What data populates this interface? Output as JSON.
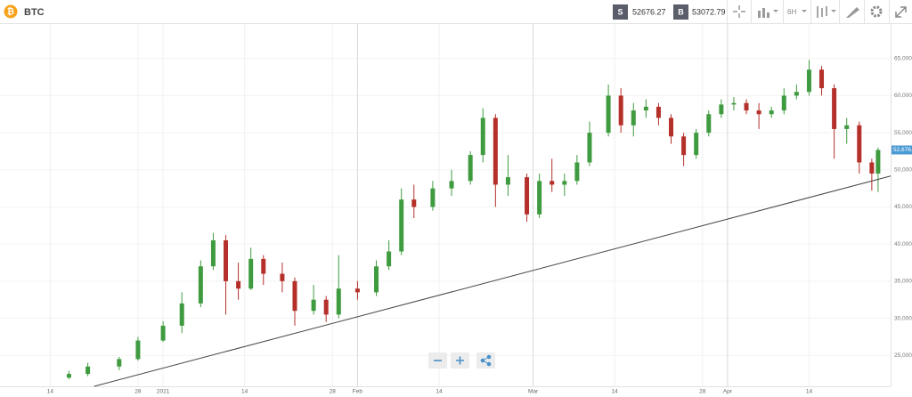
{
  "header": {
    "symbol": "BTC",
    "sell": {
      "label": "S",
      "price": "52676.27"
    },
    "buy": {
      "label": "B",
      "price": "53072.79"
    },
    "interval": "6H"
  },
  "chart_data": {
    "type": "candlestick",
    "x": [
      "2020-12-17",
      "2020-12-20",
      "2020-12-25",
      "2020-12-28",
      "2021-01-01",
      "2021-01-04",
      "2021-01-07",
      "2021-01-09",
      "2021-01-11",
      "2021-01-13",
      "2021-01-15",
      "2021-01-17",
      "2021-01-20",
      "2021-01-22",
      "2021-01-25",
      "2021-01-27",
      "2021-01-29",
      "2021-02-01",
      "2021-02-04",
      "2021-02-06",
      "2021-02-08",
      "2021-02-10",
      "2021-02-13",
      "2021-02-16",
      "2021-02-19",
      "2021-02-21",
      "2021-02-23",
      "2021-02-25",
      "2021-02-28",
      "2021-03-02",
      "2021-03-04",
      "2021-03-06",
      "2021-03-08",
      "2021-03-10",
      "2021-03-13",
      "2021-03-15",
      "2021-03-17",
      "2021-03-19",
      "2021-03-21",
      "2021-03-23",
      "2021-03-25",
      "2021-03-27",
      "2021-03-29",
      "2021-03-31",
      "2021-04-02",
      "2021-04-04",
      "2021-04-06",
      "2021-04-08",
      "2021-04-10",
      "2021-04-12",
      "2021-04-14",
      "2021-04-16",
      "2021-04-18",
      "2021-04-20",
      "2021-04-22",
      "2021-04-24",
      "2021-04-25"
    ],
    "open": [
      22000,
      22500,
      23500,
      24500,
      27000,
      29000,
      32000,
      37000,
      40500,
      35000,
      34000,
      38000,
      36000,
      35000,
      31000,
      32500,
      30500,
      34000,
      33500,
      37000,
      39000,
      46000,
      45000,
      47500,
      48500,
      52000,
      57000,
      48000,
      49000,
      44000,
      48500,
      48000,
      48500,
      51000,
      55000,
      60000,
      56000,
      58000,
      58500,
      57000,
      54500,
      52000,
      55000,
      57500,
      58800,
      59000,
      58000,
      57500,
      58000,
      60000,
      60500,
      63500,
      61000,
      55500,
      56000,
      51000,
      49500
    ],
    "high": [
      22900,
      24000,
      24800,
      27500,
      29600,
      33500,
      37800,
      41500,
      41200,
      37500,
      39500,
      38500,
      37500,
      35500,
      34500,
      33000,
      38500,
      35000,
      37800,
      40500,
      47500,
      48000,
      48500,
      50000,
      52500,
      58300,
      57500,
      52000,
      49500,
      49500,
      51500,
      49500,
      52000,
      56500,
      61500,
      61000,
      59000,
      59500,
      59000,
      57500,
      55000,
      55500,
      58000,
      59500,
      59800,
      59500,
      59000,
      58500,
      61000,
      61500,
      64800,
      64000,
      61500,
      57000,
      56500,
      51500,
      53000
    ],
    "low": [
      21800,
      22200,
      23000,
      24300,
      26800,
      28000,
      31500,
      36500,
      30500,
      32500,
      33800,
      34500,
      33500,
      29000,
      30500,
      29500,
      30000,
      32500,
      33000,
      36500,
      38500,
      43500,
      44500,
      46500,
      48000,
      51000,
      45000,
      46500,
      43000,
      43500,
      47000,
      46500,
      48000,
      50500,
      54500,
      55000,
      54500,
      57000,
      56000,
      53500,
      50500,
      51500,
      54500,
      57000,
      58000,
      57500,
      55500,
      57000,
      57500,
      59500,
      60000,
      60000,
      51500,
      53500,
      49500,
      47200,
      47000
    ],
    "close": [
      22500,
      23500,
      24500,
      27000,
      29000,
      32000,
      37000,
      40500,
      35000,
      34000,
      38000,
      36000,
      35000,
      31000,
      32500,
      30500,
      34000,
      33500,
      37000,
      39000,
      46000,
      45000,
      47500,
      48500,
      52000,
      57000,
      48000,
      49000,
      44000,
      48500,
      48000,
      48500,
      51000,
      55000,
      60000,
      56000,
      58000,
      58500,
      57000,
      54500,
      52000,
      55000,
      57500,
      58800,
      59000,
      58000,
      57500,
      58000,
      60000,
      60500,
      63500,
      61000,
      55500,
      56000,
      51000,
      49500,
      52676.2
    ],
    "up_color": "#3f9b3f",
    "down_color": "#b5302a",
    "xlim": [
      "2020-12-06",
      "2021-04-27"
    ],
    "xticks": [
      {
        "value": "2020-12-14",
        "label": "14"
      },
      {
        "value": "2020-12-28",
        "label": "28"
      },
      {
        "value": "2021-01-01",
        "label": "2021"
      },
      {
        "value": "2021-01-14",
        "label": "14"
      },
      {
        "value": "2021-01-28",
        "label": "28"
      },
      {
        "value": "2021-02-01",
        "label": "Feb"
      },
      {
        "value": "2021-02-14",
        "label": "14"
      },
      {
        "value": "2021-03-01",
        "label": "Mar"
      },
      {
        "value": "2021-03-14",
        "label": "14"
      },
      {
        "value": "2021-03-28",
        "label": "28"
      },
      {
        "value": "2021-04-01",
        "label": "Apr"
      },
      {
        "value": "2021-04-14",
        "label": "14"
      }
    ],
    "ylim": [
      20833,
      69643
    ],
    "yticks": [
      {
        "value": 25000,
        "label": "25,000"
      },
      {
        "value": 30000,
        "label": "30,000"
      },
      {
        "value": 35000,
        "label": "35,000"
      },
      {
        "value": 40000,
        "label": "40,000"
      },
      {
        "value": 45000,
        "label": "45,000"
      },
      {
        "value": 50000,
        "label": "50,000"
      },
      {
        "value": 55000,
        "label": "55,000"
      },
      {
        "value": 60000,
        "label": "60,000"
      },
      {
        "value": 65000,
        "label": "65,000"
      }
    ],
    "grid": true,
    "last_price": {
      "value": 52676.2,
      "label": "52,676.2"
    },
    "trendline": {
      "x": [
        "2020-12-21",
        "2021-04-27"
      ],
      "y": [
        20833,
        49167
      ]
    }
  }
}
